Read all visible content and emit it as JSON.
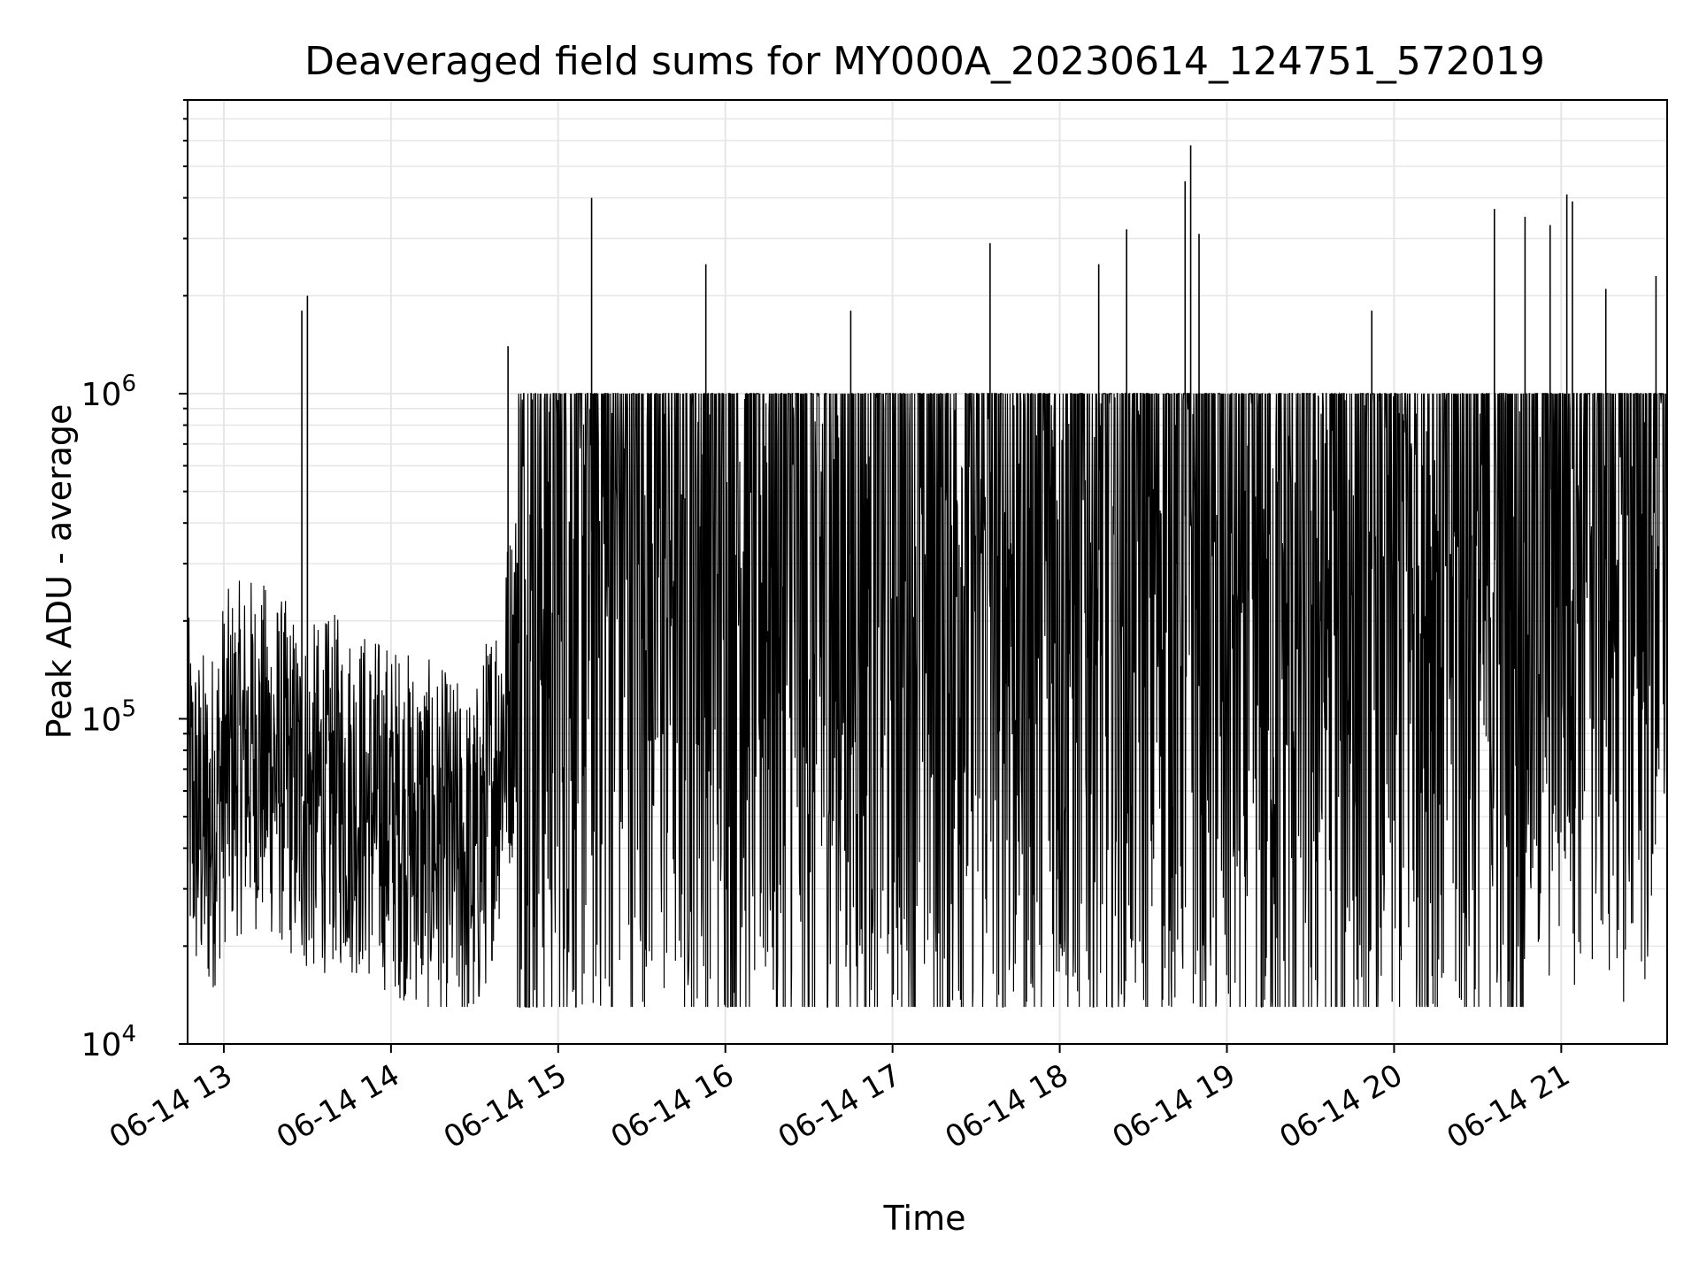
{
  "chart_data": {
    "type": "line",
    "title": "Deaveraged field sums for MY000A_20230614_124751_572019",
    "xlabel": "Time",
    "ylabel": "Peak ADU - average",
    "y_scale": "log",
    "ylim": [
      10000,
      8000000
    ],
    "xlim": [
      "2023-06-14 12:47",
      "2023-06-14 21:38"
    ],
    "grid": true,
    "x_ticks": [
      "06-14 13",
      "06-14 14",
      "06-14 15",
      "06-14 16",
      "06-14 17",
      "06-14 18",
      "06-14 19",
      "06-14 20",
      "06-14 21"
    ],
    "y_ticks": [
      {
        "base": "10",
        "exp": "4"
      },
      {
        "base": "10",
        "exp": "5"
      },
      {
        "base": "10",
        "exp": "6"
      }
    ],
    "line_color": "#000000",
    "series": [
      {
        "x": [
          "2023-06-14 12:47",
          "2023-06-14 12:50",
          "2023-06-14 12:55",
          "2023-06-14 13:00",
          "2023-06-14 13:10",
          "2023-06-14 13:20",
          "2023-06-14 13:30",
          "2023-06-14 13:40",
          "2023-06-14 13:50",
          "2023-06-14 14:00",
          "2023-06-14 14:10",
          "2023-06-14 14:20",
          "2023-06-14 14:30",
          "2023-06-14 14:40",
          "2023-06-14 14:50",
          "2023-06-14 15:00",
          "2023-06-14 15:15",
          "2023-06-14 15:30",
          "2023-06-14 15:45",
          "2023-06-14 16:00",
          "2023-06-14 16:15",
          "2023-06-14 16:30",
          "2023-06-14 16:45",
          "2023-06-14 17:00",
          "2023-06-14 17:15",
          "2023-06-14 17:30",
          "2023-06-14 17:45",
          "2023-06-14 18:00",
          "2023-06-14 18:15",
          "2023-06-14 18:30",
          "2023-06-14 18:45",
          "2023-06-14 19:00",
          "2023-06-14 19:15",
          "2023-06-14 19:30",
          "2023-06-14 19:45",
          "2023-06-14 20:00",
          "2023-06-14 20:15",
          "2023-06-14 20:30",
          "2023-06-14 20:45",
          "2023-06-14 21:00",
          "2023-06-14 21:15",
          "2023-06-14 21:30",
          "2023-06-14 21:38"
        ],
        "y": [
          60000,
          50000,
          45000,
          70000,
          80000,
          70000,
          55000,
          60000,
          55000,
          50000,
          45000,
          40000,
          35000,
          90000,
          250000,
          300000,
          400000,
          420000,
          400000,
          380000,
          350000,
          200000,
          320000,
          350000,
          330000,
          300000,
          320000,
          340000,
          330000,
          360000,
          420000,
          250000,
          200000,
          240000,
          280000,
          300000,
          330000,
          300000,
          320000,
          600000,
          550000,
          500000,
          800000
        ]
      }
    ],
    "spikes": [
      {
        "x": "2023-06-14 13:28",
        "y": 1800000
      },
      {
        "x": "2023-06-14 13:30",
        "y": 2000000
      },
      {
        "x": "2023-06-14 15:12",
        "y": 4000000
      },
      {
        "x": "2023-06-14 15:53",
        "y": 2500000
      },
      {
        "x": "2023-06-14 14:42",
        "y": 1400000
      },
      {
        "x": "2023-06-14 16:45",
        "y": 1800000
      },
      {
        "x": "2023-06-14 17:35",
        "y": 2900000
      },
      {
        "x": "2023-06-14 18:24",
        "y": 3200000
      },
      {
        "x": "2023-06-14 18:14",
        "y": 2500000
      },
      {
        "x": "2023-06-14 18:47",
        "y": 5800000
      },
      {
        "x": "2023-06-14 18:45",
        "y": 4500000
      },
      {
        "x": "2023-06-14 18:50",
        "y": 3100000
      },
      {
        "x": "2023-06-14 19:52",
        "y": 1800000
      },
      {
        "x": "2023-06-14 20:36",
        "y": 3700000
      },
      {
        "x": "2023-06-14 20:47",
        "y": 3500000
      },
      {
        "x": "2023-06-14 20:56",
        "y": 3300000
      },
      {
        "x": "2023-06-14 21:02",
        "y": 4100000
      },
      {
        "x": "2023-06-14 21:04",
        "y": 3900000
      },
      {
        "x": "2023-06-14 21:16",
        "y": 2100000
      },
      {
        "x": "2023-06-14 21:34",
        "y": 2300000
      }
    ]
  }
}
